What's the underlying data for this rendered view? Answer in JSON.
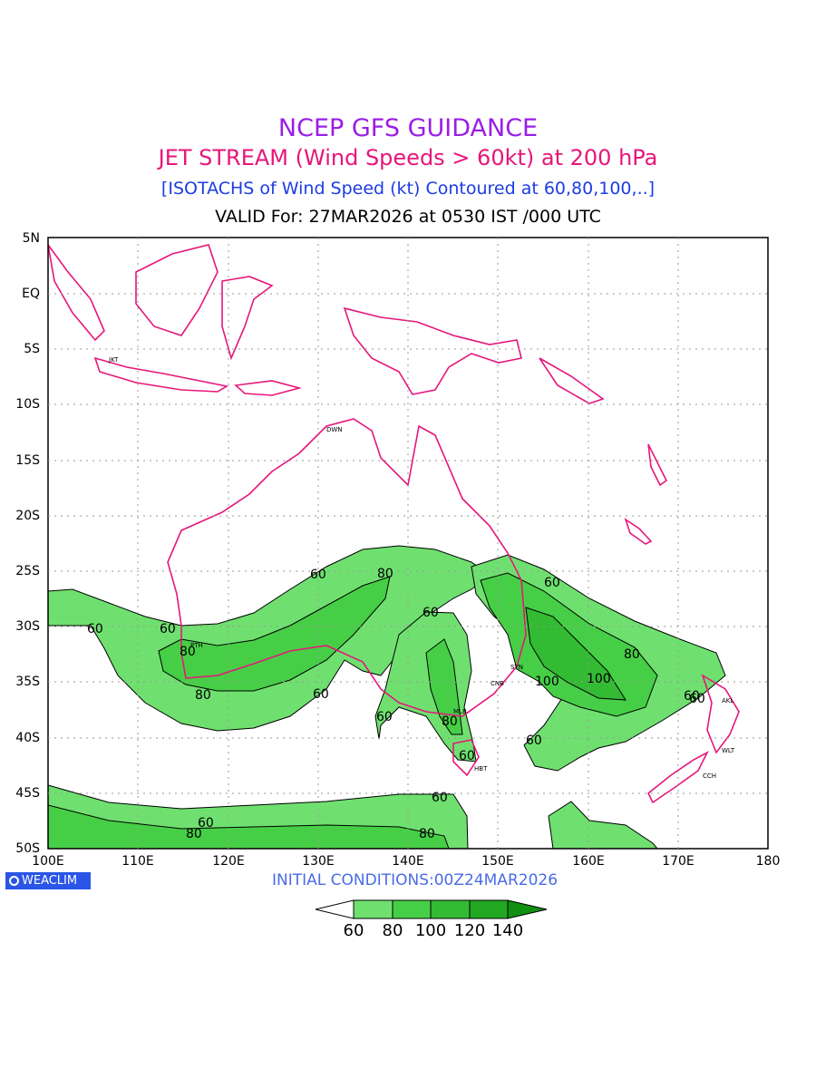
{
  "header": {
    "title": "NCEP GFS GUIDANCE",
    "subtitle": "JET STREAM (Wind Speeds > 60kt) at 200 hPa",
    "note": "[ISOTACHS of Wind Speed (kt) Contoured at 60,80,100,..]",
    "valid": "VALID For: 27MAR2026 at 0530 IST /000 UTC"
  },
  "axes": {
    "lat_labels": [
      "5N",
      "EQ",
      "5S",
      "10S",
      "15S",
      "20S",
      "25S",
      "30S",
      "35S",
      "40S",
      "45S",
      "50S"
    ],
    "lon_labels": [
      "100E",
      "110E",
      "120E",
      "130E",
      "140E",
      "150E",
      "160E",
      "170E",
      "180"
    ]
  },
  "cities": [
    "JKT",
    "DWN",
    "PTH",
    "CNB",
    "SYN",
    "MLB",
    "HBT",
    "AKL",
    "WLT",
    "CCH"
  ],
  "contour_labels": [
    "60",
    "80",
    "60",
    "80",
    "60",
    "80",
    "60",
    "60",
    "100",
    "80",
    "60",
    "100",
    "60",
    "60",
    "80",
    "60",
    "80",
    "60",
    "80",
    "60",
    "60",
    "60"
  ],
  "colors": {
    "title": "#9a1ee6",
    "subtitle": "#e6167a",
    "note": "#1c3ce6",
    "coastline": "#e6167a",
    "shade_60": "#6fe06f",
    "shade_80": "#46cf46",
    "shade_100": "#33bb33",
    "shade_120": "#22a822",
    "shade_140": "#118f11",
    "logo": "#2a55e6"
  },
  "footer": {
    "logo": "WEACLIM",
    "init": "INITIAL  CONDITIONS:00Z24MAR2026"
  },
  "colorbar": {
    "levels": [
      "60",
      "80",
      "100",
      "120",
      "140"
    ]
  }
}
